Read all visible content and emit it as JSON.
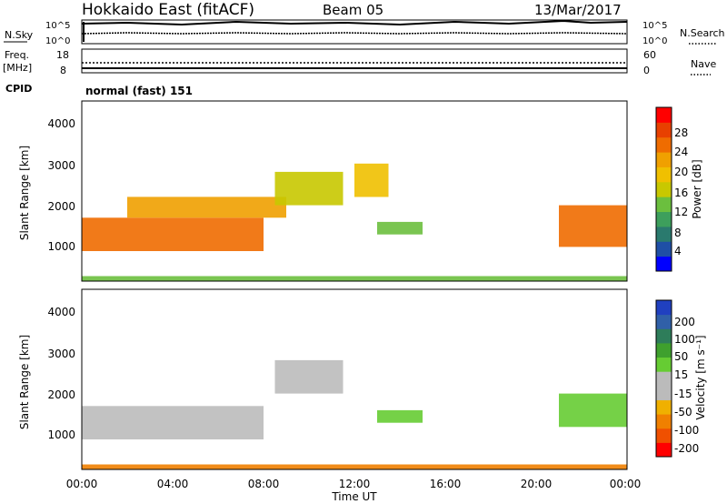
{
  "header": {
    "title": "Hokkaido East (fitACF)",
    "beam": "Beam 05",
    "date": "13/Mar/2017"
  },
  "top_panels": {
    "nsky_label": "N.Sky",
    "nsky_ticks": [
      "10^5",
      "10^0"
    ],
    "nsearch_label": "N.Search",
    "nsearch_ticks": [
      "10^5",
      "10^0"
    ],
    "freq_label_1": "Freq.",
    "freq_label_2": "[MHz]",
    "freq_ticks": [
      "18",
      "8"
    ],
    "nave_label": "Nave",
    "nave_ticks": [
      "60",
      "0"
    ],
    "cpid_label": "CPID",
    "cpid_text": "normal (fast) 151"
  },
  "xaxis": {
    "label": "Time UT",
    "ticks": [
      "00:00",
      "04:00",
      "08:00",
      "12:00",
      "16:00",
      "20:00",
      "00:00"
    ]
  },
  "chart_data": [
    {
      "type": "heatmap",
      "panel": "power",
      "ylabel": "Slant Range [km]",
      "yticks": [
        "1000",
        "2000",
        "3000",
        "4000"
      ],
      "ylim": [
        180,
        4500
      ],
      "xlim": [
        0,
        24
      ],
      "colorbar": {
        "label": "Power [dB]",
        "ticks": [
          "4",
          "8",
          "12",
          "16",
          "20",
          "24",
          "28"
        ],
        "colors": [
          "#0000ff",
          "#1f4fa6",
          "#2a7a6e",
          "#3d9f5c",
          "#6bbf3e",
          "#c8c800",
          "#f0c000",
          "#f0a000",
          "#ef6c00",
          "#e84000",
          "#ff0000"
        ]
      },
      "regions": [
        {
          "t": [
            0,
            8
          ],
          "r": [
            900,
            1700
          ],
          "level": 28
        },
        {
          "t": [
            2,
            9
          ],
          "r": [
            1700,
            2200
          ],
          "level": 22
        },
        {
          "t": [
            8.5,
            11.5
          ],
          "r": [
            2000,
            2800
          ],
          "level": 16
        },
        {
          "t": [
            12,
            13.5
          ],
          "r": [
            2200,
            3000
          ],
          "level": 18
        },
        {
          "t": [
            13,
            15
          ],
          "r": [
            1300,
            1600
          ],
          "level": 10
        },
        {
          "t": [
            21,
            24
          ],
          "r": [
            1000,
            2000
          ],
          "level": 26
        },
        {
          "t": [
            0,
            24
          ],
          "r": [
            180,
            300
          ],
          "level": 12
        }
      ]
    },
    {
      "type": "heatmap",
      "panel": "velocity",
      "ylabel": "Slant Range [km]",
      "yticks": [
        "1000",
        "2000",
        "3000",
        "4000"
      ],
      "ylim": [
        180,
        4500
      ],
      "xlim": [
        0,
        24
      ],
      "colorbar": {
        "label": "Velocity [m s⁻¹]",
        "ticks": [
          "200",
          "100",
          "50",
          "15",
          "-15",
          "-50",
          "-100",
          "-200"
        ],
        "colors": [
          "#2040c0",
          "#3060a8",
          "#2e7d5a",
          "#3fa02e",
          "#66cc33",
          "#bbbbbb",
          "#bbbbbb",
          "#f0b000",
          "#f08000",
          "#f05000",
          "#ff0000"
        ]
      },
      "regions": [
        {
          "t": [
            0,
            8
          ],
          "r": [
            900,
            1700
          ],
          "velocity": 0
        },
        {
          "t": [
            8.5,
            11.5
          ],
          "r": [
            2000,
            2800
          ],
          "velocity": 0
        },
        {
          "t": [
            13,
            15
          ],
          "r": [
            1300,
            1600
          ],
          "velocity": 40
        },
        {
          "t": [
            21,
            24
          ],
          "r": [
            1200,
            2000
          ],
          "velocity": 40
        },
        {
          "t": [
            0,
            24
          ],
          "r": [
            180,
            300
          ],
          "velocity": -60
        }
      ]
    }
  ]
}
